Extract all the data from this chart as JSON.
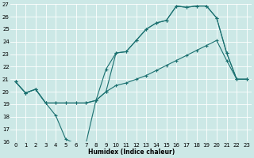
{
  "xlabel": "Humidex (Indice chaleur)",
  "xlim_min": -0.5,
  "xlim_max": 23.5,
  "ylim_min": 16,
  "ylim_max": 27,
  "xticks": [
    0,
    1,
    2,
    3,
    4,
    5,
    6,
    7,
    8,
    9,
    10,
    11,
    12,
    13,
    14,
    15,
    16,
    17,
    18,
    19,
    20,
    21,
    22,
    23
  ],
  "yticks": [
    16,
    17,
    18,
    19,
    20,
    21,
    22,
    23,
    24,
    25,
    26,
    27
  ],
  "bg_color": "#cce8e6",
  "line_color": "#1a7070",
  "grid_color": "#ffffff",
  "line1_x": [
    0,
    1,
    2,
    3,
    4,
    5,
    6,
    7,
    8,
    9,
    10,
    11,
    12,
    13,
    14,
    15,
    16,
    17,
    18,
    19,
    20,
    21,
    22,
    23
  ],
  "line1_y": [
    20.8,
    19.9,
    20.2,
    19.1,
    18.1,
    16.2,
    15.85,
    15.85,
    19.3,
    21.8,
    23.1,
    23.2,
    24.1,
    25.0,
    25.5,
    25.7,
    26.85,
    26.75,
    26.85,
    26.85,
    25.9,
    23.1,
    21.0,
    21.0
  ],
  "line2_x": [
    0,
    1,
    2,
    3,
    4,
    5,
    6,
    7,
    8,
    9,
    10,
    11,
    12,
    13,
    14,
    15,
    16,
    17,
    18,
    19,
    20,
    21,
    22,
    23
  ],
  "line2_y": [
    20.8,
    19.9,
    20.2,
    19.1,
    19.1,
    19.1,
    19.1,
    19.1,
    19.3,
    20.0,
    23.1,
    23.2,
    24.1,
    25.0,
    25.5,
    25.7,
    26.85,
    26.75,
    26.85,
    26.85,
    25.9,
    23.1,
    21.0,
    21.0
  ],
  "line3_x": [
    0,
    1,
    2,
    3,
    4,
    5,
    6,
    7,
    8,
    9,
    10,
    11,
    12,
    13,
    14,
    15,
    16,
    17,
    18,
    19,
    20,
    21,
    22,
    23
  ],
  "line3_y": [
    20.8,
    19.9,
    20.2,
    19.1,
    19.1,
    19.1,
    19.1,
    19.1,
    19.3,
    20.0,
    20.5,
    20.7,
    21.0,
    21.3,
    21.7,
    22.1,
    22.5,
    22.9,
    23.3,
    23.7,
    24.1,
    22.5,
    21.0,
    21.0
  ],
  "tick_fontsize": 5.0,
  "xlabel_fontsize": 5.5
}
